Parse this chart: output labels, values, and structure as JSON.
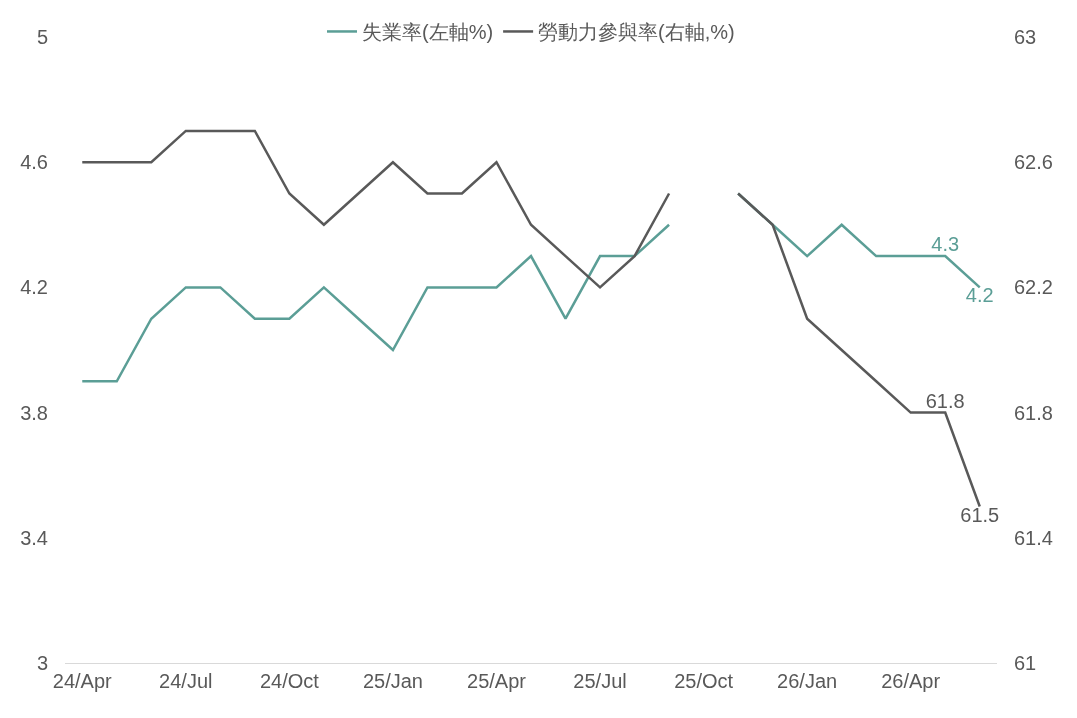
{
  "chart_data": {
    "type": "line",
    "categories": [
      "24/Apr",
      null,
      null,
      "24/Jul",
      null,
      null,
      "24/Oct",
      null,
      null,
      "25/Jan",
      null,
      null,
      "25/Apr",
      null,
      null,
      "25/Jul",
      null,
      null,
      "25/Oct",
      null,
      null,
      "26/Jan",
      null,
      null,
      "26/Apr",
      null,
      null
    ],
    "series": [
      {
        "name": "失業率(左軸%)",
        "color": "#5b9e96",
        "values": [
          3.9,
          3.9,
          4.1,
          4.2,
          4.2,
          4.1,
          4.1,
          4.2,
          4.1,
          4.0,
          4.2,
          4.2,
          4.2,
          4.3,
          4.1,
          4.3,
          4.3,
          4.4,
          null,
          4.5,
          4.4,
          4.3,
          4.4,
          4.3,
          4.3,
          4.3,
          4.2
        ],
        "value_labels": [
          null,
          null,
          null,
          null,
          null,
          null,
          null,
          null,
          null,
          null,
          null,
          null,
          null,
          null,
          null,
          null,
          null,
          null,
          null,
          null,
          null,
          null,
          null,
          null,
          null,
          "4.3",
          "4.2"
        ]
      },
      {
        "name": "勞動力參與率(右軸,%)",
        "color": "#595959",
        "axis": "y2",
        "values": [
          62.6,
          62.6,
          62.6,
          62.7,
          62.7,
          62.7,
          62.5,
          62.4,
          62.5,
          62.6,
          62.5,
          62.5,
          62.6,
          62.4,
          62.3,
          62.2,
          62.3,
          62.5,
          null,
          62.5,
          62.4,
          62.1,
          62.0,
          61.9,
          61.8,
          61.8,
          61.5
        ],
        "value_labels": [
          null,
          null,
          null,
          null,
          null,
          null,
          null,
          null,
          null,
          null,
          null,
          null,
          null,
          null,
          null,
          null,
          null,
          null,
          null,
          null,
          null,
          null,
          null,
          null,
          null,
          "61.8",
          "61.5"
        ]
      }
    ],
    "ylim": [
      3,
      5
    ],
    "yticks": [
      3,
      3.4,
      3.8,
      4.2,
      4.6,
      5
    ],
    "y2lim": [
      61,
      63
    ],
    "y2ticks": [
      61,
      61.4,
      61.8,
      62.2,
      62.6,
      63
    ],
    "legend": "top",
    "marker": "none",
    "line_style": "solid"
  }
}
